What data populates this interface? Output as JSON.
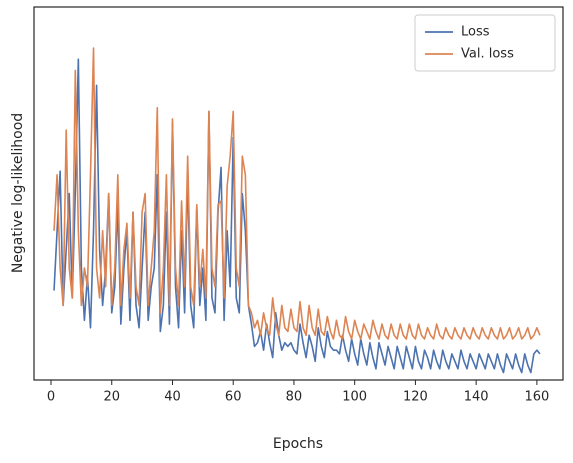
{
  "chart_data": {
    "type": "line",
    "xlabel": "Epochs",
    "ylabel": "Negative log-likelihood",
    "x": [
      1,
      2,
      3,
      4,
      5,
      6,
      7,
      8,
      9,
      10,
      11,
      12,
      13,
      14,
      15,
      16,
      17,
      18,
      19,
      20,
      21,
      22,
      23,
      24,
      25,
      26,
      27,
      28,
      29,
      30,
      31,
      32,
      33,
      34,
      35,
      36,
      37,
      38,
      39,
      40,
      41,
      42,
      43,
      44,
      45,
      46,
      47,
      48,
      49,
      50,
      51,
      52,
      53,
      54,
      55,
      56,
      57,
      58,
      59,
      60,
      61,
      62,
      63,
      64,
      65,
      66,
      67,
      68,
      69,
      70,
      71,
      72,
      73,
      74,
      75,
      76,
      77,
      78,
      79,
      80,
      81,
      82,
      83,
      84,
      85,
      86,
      87,
      88,
      89,
      90,
      91,
      92,
      93,
      94,
      95,
      96,
      97,
      98,
      99,
      100,
      101,
      102,
      103,
      104,
      105,
      106,
      107,
      108,
      109,
      110,
      111,
      112,
      113,
      114,
      115,
      116,
      117,
      118,
      119,
      120,
      121,
      122,
      123,
      124,
      125,
      126,
      127,
      128,
      129,
      130,
      131,
      132,
      133,
      134,
      135,
      136,
      137,
      138,
      139,
      140,
      141,
      142,
      143,
      144,
      145,
      146,
      147,
      148,
      149,
      150,
      151,
      152,
      153,
      154,
      155,
      156,
      157,
      158,
      159,
      160,
      161
    ],
    "series": [
      {
        "name": "Loss",
        "color": "#4c72b0",
        "values": [
          24,
          40,
          56,
          20,
          35,
          50,
          22,
          50,
          86,
          30,
          16,
          28,
          14,
          40,
          79,
          35,
          20,
          30,
          50,
          18,
          25,
          47,
          15,
          30,
          40,
          16,
          45,
          20,
          14,
          30,
          45,
          16,
          25,
          30,
          55,
          13,
          20,
          45,
          15,
          69,
          25,
          14,
          40,
          18,
          55,
          20,
          14,
          46,
          20,
          30,
          16,
          72,
          22,
          18,
          45,
          57,
          16,
          40,
          25,
          65,
          22,
          18,
          50,
          40,
          20,
          15,
          9,
          10,
          13,
          8,
          15,
          10,
          6,
          18,
          12,
          8,
          10,
          9,
          10,
          8,
          7,
          15,
          10,
          6,
          12,
          9,
          5,
          14,
          9,
          6,
          13,
          9,
          8,
          8,
          7,
          12,
          8,
          5,
          11,
          7,
          4,
          11,
          7,
          4,
          10,
          6,
          3,
          10,
          7,
          4,
          9,
          6,
          3,
          9,
          6,
          3,
          9,
          6,
          3,
          9,
          5,
          3,
          8,
          6,
          3,
          8,
          5,
          3,
          8,
          5,
          3,
          7,
          5,
          3,
          8,
          5,
          3,
          7,
          5,
          3,
          7,
          5,
          3,
          7,
          5,
          3,
          7,
          4,
          2,
          7,
          5,
          3,
          7,
          4,
          2,
          7,
          4,
          2,
          7,
          8,
          7
        ]
      },
      {
        "name": "Val. loss",
        "color": "#dd8452",
        "values": [
          40,
          55,
          30,
          20,
          67,
          30,
          22,
          83,
          40,
          20,
          30,
          25,
          55,
          89,
          30,
          22,
          40,
          25,
          50,
          20,
          30,
          55,
          20,
          35,
          42,
          22,
          45,
          25,
          20,
          45,
          50,
          20,
          30,
          40,
          73,
          18,
          30,
          55,
          20,
          70,
          30,
          20,
          48,
          25,
          60,
          25,
          20,
          47,
          25,
          35,
          22,
          72,
          30,
          25,
          47,
          48,
          22,
          52,
          60,
          72,
          30,
          25,
          60,
          55,
          20,
          18,
          14,
          16,
          12,
          18,
          14,
          12,
          22,
          15,
          12,
          20,
          14,
          13,
          19,
          14,
          13,
          21,
          14,
          12,
          20,
          14,
          12,
          19,
          13,
          12,
          17,
          13,
          11,
          16,
          12,
          11,
          17,
          13,
          11,
          16,
          13,
          11,
          15,
          13,
          11,
          16,
          13,
          11,
          15,
          12,
          11,
          15,
          12,
          11,
          15,
          12,
          11,
          15,
          12,
          11,
          15,
          12,
          11,
          14,
          12,
          11,
          15,
          12,
          11,
          14,
          12,
          11,
          14,
          12,
          11,
          14,
          12,
          11,
          14,
          12,
          11,
          14,
          12,
          11,
          14,
          12,
          11,
          14,
          11,
          12,
          14,
          11,
          12,
          14,
          11,
          12,
          14,
          11,
          12,
          14,
          12
        ]
      }
    ],
    "xlim": [
      -5.6,
      168.6
    ],
    "ylim": [
      0,
      100
    ],
    "xticks": [
      0,
      20,
      40,
      60,
      80,
      100,
      120,
      140,
      160
    ],
    "grid": false,
    "legend": "upper right"
  }
}
